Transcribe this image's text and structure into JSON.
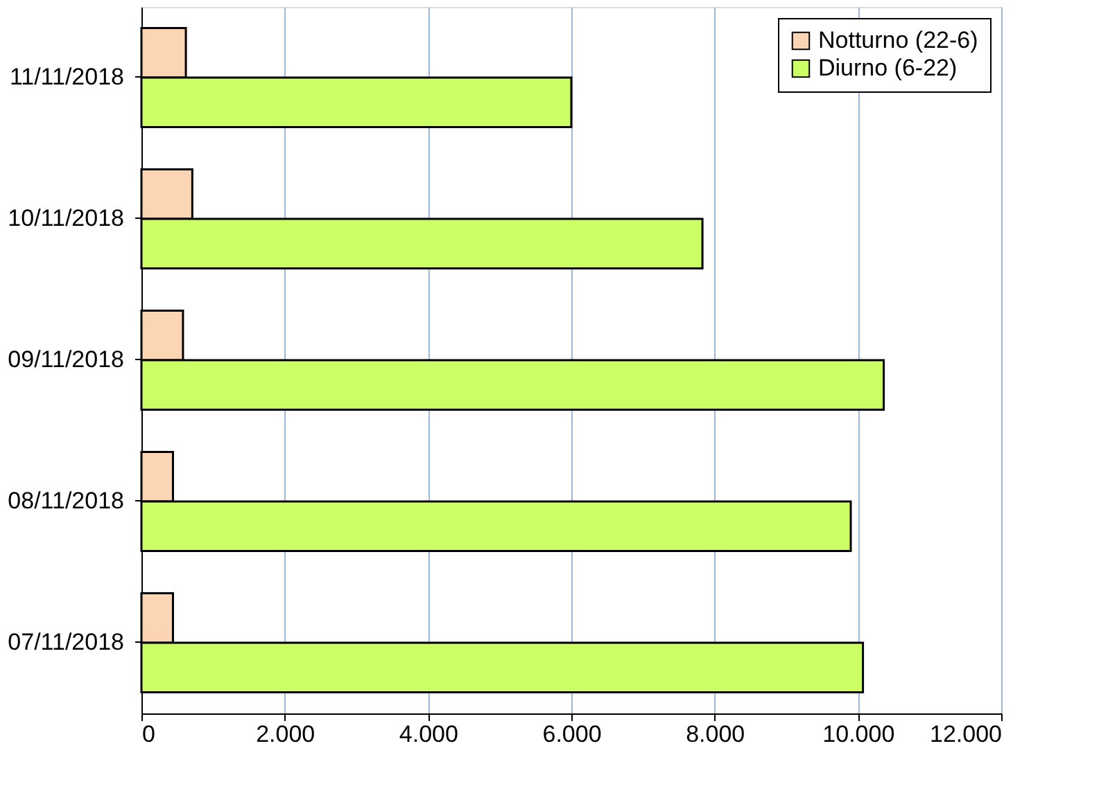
{
  "chart_data": {
    "type": "bar",
    "orientation": "horizontal",
    "categories": [
      "11/11/2018",
      "10/11/2018",
      "09/11/2018",
      "08/11/2018",
      "07/11/2018"
    ],
    "series": [
      {
        "name": "Notturno (22-6)",
        "color": "#fcd5b4",
        "values": [
          620,
          710,
          580,
          440,
          440
        ]
      },
      {
        "name": "Diurno (6-22)",
        "color": "#ccff66",
        "values": [
          6000,
          7830,
          10360,
          9900,
          10070
        ]
      }
    ],
    "xlim": [
      0,
      12000
    ],
    "xticks": [
      0,
      {
        "value": 2000,
        "label": "2.000"
      },
      {
        "value": 4000,
        "label": "4.000"
      },
      {
        "value": 6000,
        "label": "6.000"
      },
      {
        "value": 8000,
        "label": "8.000"
      },
      {
        "value": 10000,
        "label": "10.000"
      },
      {
        "value": 12000,
        "label": "12.000"
      }
    ],
    "grid": "x",
    "legend": "top right"
  }
}
